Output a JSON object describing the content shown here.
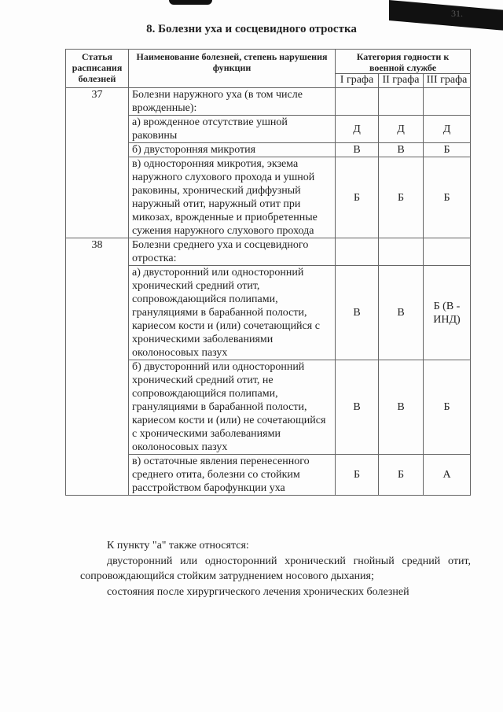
{
  "page_number": "31.",
  "title": "8. Болезни уха и сосцевидного отростка",
  "table": {
    "headers": {
      "article": "Статья расписания болезней",
      "name": "Наименование болезней, степень нарушения функции",
      "category": "Категория годности к военной службе",
      "col1": "I графа",
      "col2": "II графа",
      "col3": "III графа"
    },
    "rows": [
      {
        "article": "37",
        "text": "Болезни наружного уха (в том числе врожденные):",
        "g1": "",
        "g2": "",
        "g3": ""
      },
      {
        "article": "",
        "text": "а) врожденное отсутствие ушной раковины",
        "g1": "Д",
        "g2": "Д",
        "g3": "Д"
      },
      {
        "article": "",
        "text": "б) двусторонняя микротия",
        "g1": "В",
        "g2": "В",
        "g3": "Б"
      },
      {
        "article": "",
        "text": "в) односторонняя микротия, экзема наружного слухового прохода и ушной раковины, хронический диффузный наружный отит, наружный отит при микозах, врожденные и приобретенные сужения наружного слухового прохода",
        "g1": "Б",
        "g2": "Б",
        "g3": "Б"
      },
      {
        "article": "38",
        "text": "Болезни среднего уха и сосцевидного отростка:",
        "g1": "",
        "g2": "",
        "g3": ""
      },
      {
        "article": "",
        "text": "а) двусторонний или односторонний хронический средний отит, сопровождающийся полипами, грануляциями в барабанной полости, кариесом кости и (или) сочетающийся с хроническими заболеваниями околоносовых пазух",
        "g1": "В",
        "g2": "В",
        "g3": "Б (В - ИНД)"
      },
      {
        "article": "",
        "text": "б) двусторонний или односторонний хронический средний отит, не сопровождающийся полипами, грануляциями в барабанной полости, кариесом кости и (или) не сочетающийся с хроническими заболеваниями околоносовых пазух",
        "g1": "В",
        "g2": "В",
        "g3": "Б"
      },
      {
        "article": "",
        "text": "в) остаточные явления перенесенного среднего отита, болезни со стойким расстройством барофункции уха",
        "g1": "Б",
        "g2": "Б",
        "g3": "А"
      }
    ]
  },
  "paragraphs": [
    "К пункту \"а\" также относятся:",
    "двусторонний или односторонний хронический гнойный средний отит, сопровождающийся стойким затруднением носового дыхания;",
    "состояния после хирургического лечения хронических болезней"
  ]
}
